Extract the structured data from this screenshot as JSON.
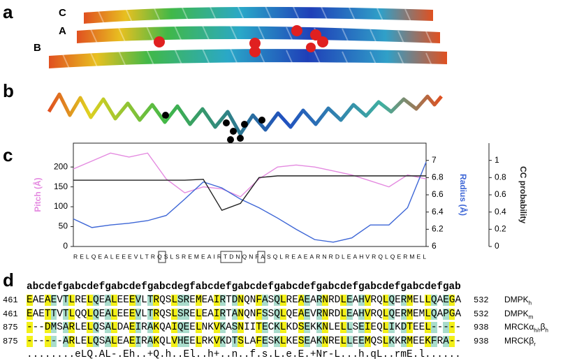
{
  "panel_labels": [
    "a",
    "b",
    "c",
    "d"
  ],
  "chain_labels": [
    "C",
    "A",
    "B"
  ],
  "chart_data": {
    "type": "line",
    "x": [
      0,
      3,
      6,
      9,
      12,
      15,
      18,
      21,
      24,
      27,
      30,
      33,
      36,
      39,
      42,
      45,
      48,
      51,
      54,
      57
    ],
    "xlim": [
      0,
      57
    ],
    "sequence": "RELQEALEEEVLTRQSLSREMEAIRTDNQNFASQLREAEARNRDLEAHVRQLQERMEL",
    "ylabel": "Pitch (Å)",
    "y2label": "Radius (Å)",
    "y3label": "CC probability",
    "ylim": [
      0,
      260
    ],
    "yticks": [
      0,
      50,
      100,
      150,
      200
    ],
    "y2lim": [
      6,
      7.2
    ],
    "y2ticks": [
      6,
      6.2,
      6.4,
      6.6,
      6.8,
      7
    ],
    "y3lim": [
      0,
      1.2
    ],
    "y3ticks": [
      0,
      0.2,
      0.4,
      0.6,
      0.8,
      1
    ],
    "series": [
      {
        "color": "#e48ae0",
        "values": [
          195,
          215,
          235,
          225,
          235,
          170,
          135,
          150,
          145,
          125,
          170,
          200,
          205,
          200,
          190,
          180,
          165,
          150,
          180,
          170
        ]
      },
      {
        "color": "#3d66d6",
        "axis": "y2",
        "values": [
          6.32,
          6.22,
          6.25,
          6.27,
          6.3,
          6.36,
          6.55,
          6.75,
          6.68,
          6.55,
          6.45,
          6.33,
          6.2,
          6.08,
          6.05,
          6.1,
          6.25,
          6.25,
          6.45,
          6.98
        ]
      },
      {
        "color": "#222222",
        "axis": "y3",
        "values": [
          0.77,
          0.77,
          0.77,
          0.77,
          0.77,
          0.77,
          0.77,
          0.78,
          0.42,
          0.5,
          0.8,
          0.82,
          0.82,
          0.82,
          0.82,
          0.82,
          0.82,
          0.82,
          0.82,
          0.82
        ]
      }
    ]
  },
  "alignment": {
    "heptad": "abcdefgabcdefgabcdefgabcdegfabcdefgabcdefgabcdefgabcdefgabcdefgabcdefgab",
    "rows": [
      {
        "start": "461",
        "sequence": "EAEAEVTLRELQEALEEEVLTRQSLSREMEAIRTDNQNFASQLREAEARNRDLEAHVRQLQERMELLQAEGA",
        "end": "532",
        "name": [
          {
            "text": "DMPK"
          },
          {
            "sub": "h"
          }
        ]
      },
      {
        "start": "461",
        "sequence": "EAETTVTLQQLQEALEEEVLTRQSLSRELEAIRTANQNFSSQLQEAEVRNRDLEAHVRQLQERMEMLQAPGA",
        "end": "532",
        "name": [
          {
            "text": "DMPK"
          },
          {
            "sub": "m"
          }
        ]
      },
      {
        "start": "875",
        "sequence": "---DMSARLELQSALDAEIRAKQAIQEELNKVKASNIITECKLKDSEKKNLELLSEIEQLIKDTEEL-----",
        "end": "938",
        "name": [
          {
            "text": "MRCKα"
          },
          {
            "sub": "h/r"
          },
          {
            "text": "β"
          },
          {
            "sub": "h"
          }
        ]
      },
      {
        "start": "875",
        "sequence": "------ARLELQSALEAEIRAKQLVHEELRKVKDTSLAFESKLKESEAKNRELLEEMQSLKKRMEEKFRA--",
        "end": "938",
        "name": [
          {
            "text": "MRCKβ"
          },
          {
            "sub": "r"
          }
        ]
      }
    ],
    "consensus": "........eLQ.AL-.Eh..+Q.h..El..h+..n..f.s.L.e.E.+Nr-L...h.qL..rmE.l......"
  }
}
